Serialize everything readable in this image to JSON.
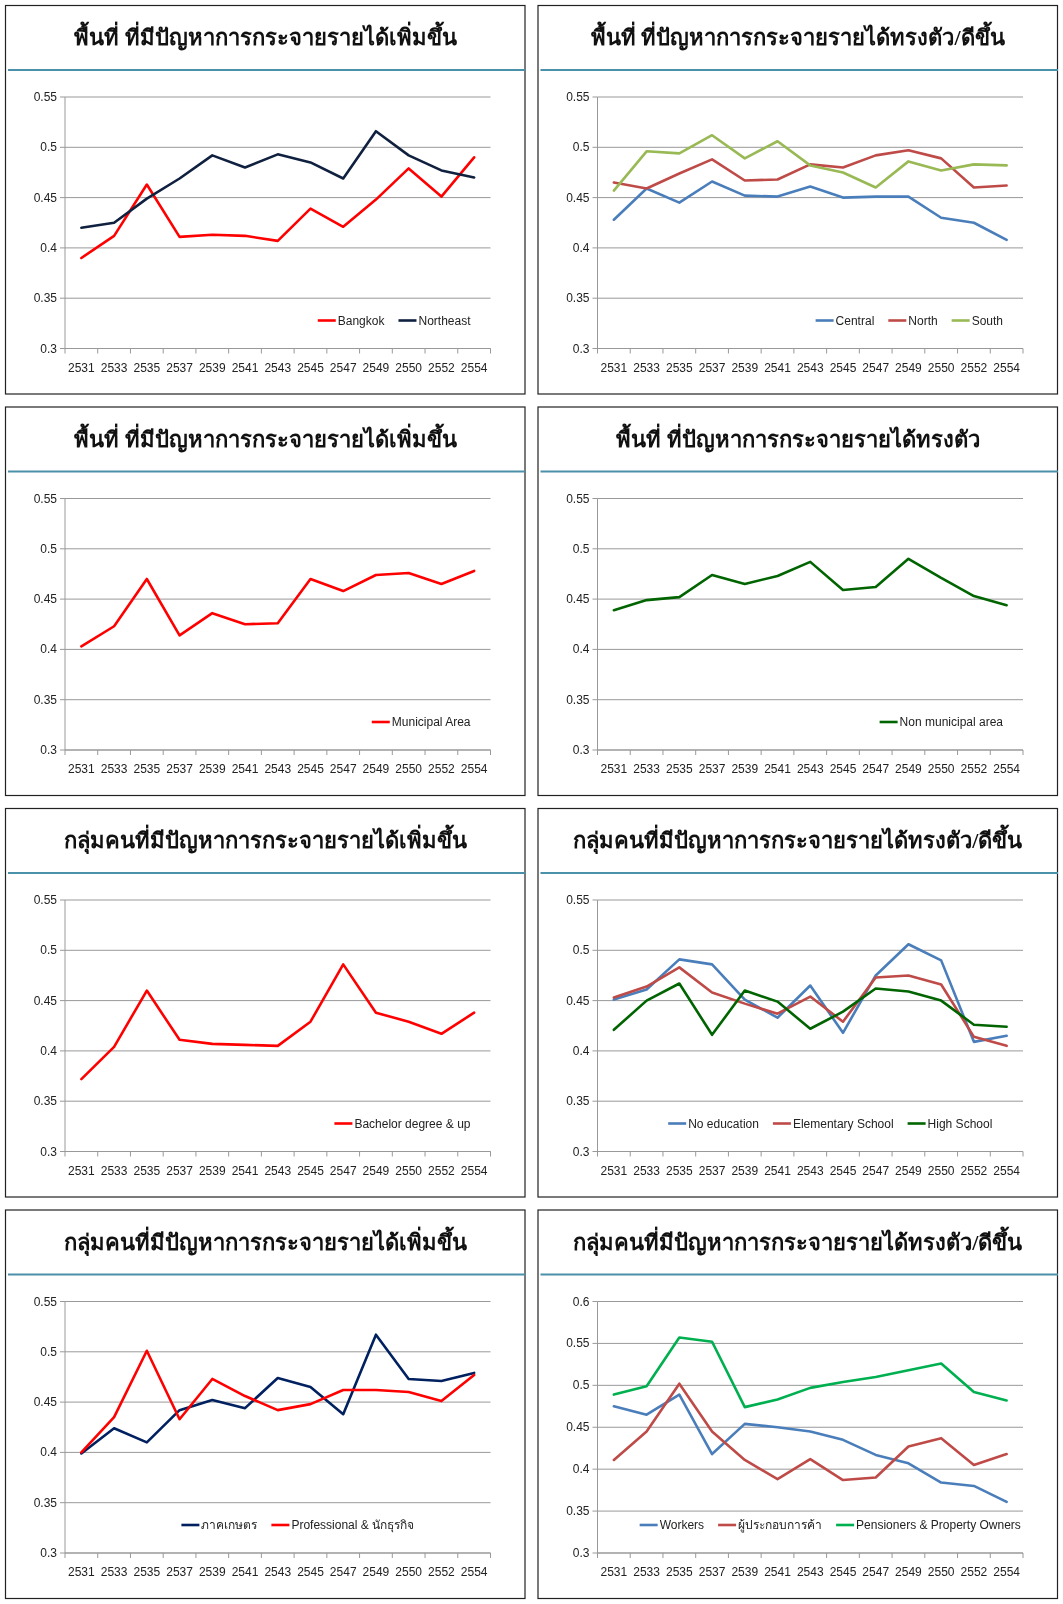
{
  "chart_data": [
    {
      "type": "line",
      "title": "พื้นที่ ที่มีปัญหาการกระจายรายได้เพิ่มขึ้น",
      "categories": [
        "2531",
        "2533",
        "2535",
        "2537",
        "2539",
        "2541",
        "2543",
        "2545",
        "2547",
        "2549",
        "2550",
        "2552",
        "2554"
      ],
      "ylim": [
        0.3,
        0.55
      ],
      "yticks": [
        0.3,
        0.35,
        0.4,
        0.45,
        0.5,
        0.55
      ],
      "grid": "y",
      "legend": "bottom right",
      "line_style": "solid",
      "marker": "none",
      "series": [
        {
          "name": "Bangkok",
          "color": "#ff0000",
          "values": [
            0.39,
            0.412,
            0.463,
            0.411,
            0.413,
            0.412,
            0.407,
            0.439,
            0.421,
            0.448,
            0.479,
            0.451,
            0.49
          ]
        },
        {
          "name": "Northeast",
          "color": "#10203f",
          "values": [
            0.42,
            0.425,
            0.449,
            0.469,
            0.492,
            0.48,
            0.493,
            0.485,
            0.469,
            0.516,
            0.492,
            0.477,
            0.47
          ]
        }
      ]
    },
    {
      "type": "line",
      "title": "พื้นที่ ที่ปัญหาการกระจายรายได้ทรงตัว/ดีขึ้น",
      "categories": [
        "2531",
        "2533",
        "2535",
        "2537",
        "2539",
        "2541",
        "2543",
        "2545",
        "2547",
        "2549",
        "2550",
        "2552",
        "2554"
      ],
      "ylim": [
        0.3,
        0.55
      ],
      "yticks": [
        0.3,
        0.35,
        0.4,
        0.45,
        0.5,
        0.55
      ],
      "grid": "y",
      "legend": "bottom right",
      "line_style": "solid",
      "marker": "none",
      "series": [
        {
          "name": "Central",
          "color": "#4a7ebb",
          "values": [
            0.428,
            0.459,
            0.445,
            0.466,
            0.452,
            0.451,
            0.461,
            0.45,
            0.451,
            0.451,
            0.43,
            0.425,
            0.408
          ]
        },
        {
          "name": "North",
          "color": "#be4b48",
          "values": [
            0.465,
            0.459,
            0.474,
            0.488,
            0.467,
            0.468,
            0.483,
            0.48,
            0.492,
            0.497,
            0.489,
            0.46,
            0.462
          ]
        },
        {
          "name": "South",
          "color": "#98b954",
          "values": [
            0.457,
            0.496,
            0.494,
            0.512,
            0.489,
            0.506,
            0.482,
            0.475,
            0.46,
            0.486,
            0.477,
            0.483,
            0.482
          ]
        }
      ]
    },
    {
      "type": "line",
      "title": "พื้นที่ ที่มีปัญหาการกระจายรายได้เพิ่มขึ้น",
      "categories": [
        "2531",
        "2533",
        "2535",
        "2537",
        "2539",
        "2541",
        "2543",
        "2545",
        "2547",
        "2549",
        "2550",
        "2552",
        "2554"
      ],
      "ylim": [
        0.3,
        0.55
      ],
      "yticks": [
        0.3,
        0.35,
        0.4,
        0.45,
        0.5,
        0.55
      ],
      "grid": "y",
      "legend": "bottom right",
      "line_style": "solid",
      "marker": "none",
      "series": [
        {
          "name": "Municipal Area",
          "color": "#ff0000",
          "values": [
            0.403,
            0.423,
            0.47,
            0.414,
            0.436,
            0.425,
            0.426,
            0.47,
            0.458,
            0.474,
            0.476,
            0.465,
            0.478
          ]
        }
      ]
    },
    {
      "type": "line",
      "title": "พื้นที่ ที่ปัญหาการกระจายรายได้ทรงตัว",
      "categories": [
        "2531",
        "2533",
        "2535",
        "2537",
        "2539",
        "2541",
        "2543",
        "2545",
        "2547",
        "2549",
        "2550",
        "2552",
        "2554"
      ],
      "ylim": [
        0.3,
        0.55
      ],
      "yticks": [
        0.3,
        0.35,
        0.4,
        0.45,
        0.5,
        0.55
      ],
      "grid": "y",
      "legend": "bottom right",
      "line_style": "solid",
      "marker": "none",
      "series": [
        {
          "name": "Non municipal area",
          "color": "#006400",
          "values": [
            0.439,
            0.449,
            0.452,
            0.474,
            0.465,
            0.473,
            0.487,
            0.459,
            0.462,
            0.49,
            0.471,
            0.453,
            0.444
          ]
        }
      ]
    },
    {
      "type": "line",
      "title": "กลุ่มคนที่มีปัญหาการกระจายรายได้เพิ่มขึ้น",
      "categories": [
        "2531",
        "2533",
        "2535",
        "2537",
        "2539",
        "2541",
        "2543",
        "2545",
        "2547",
        "2549",
        "2550",
        "2552",
        "2554"
      ],
      "ylim": [
        0.3,
        0.55
      ],
      "yticks": [
        0.3,
        0.35,
        0.4,
        0.45,
        0.5,
        0.55
      ],
      "grid": "y",
      "legend": "bottom right",
      "line_style": "solid",
      "marker": "none",
      "series": [
        {
          "name": "Bachelor degree & up",
          "color": "#ff0000",
          "values": [
            0.372,
            0.404,
            0.46,
            0.411,
            0.407,
            0.406,
            0.405,
            0.429,
            0.486,
            0.438,
            0.429,
            0.417,
            0.438
          ]
        }
      ]
    },
    {
      "type": "line",
      "title": "กลุ่มคนที่มีปัญหาการกระจายรายได้ทรงตัว/ดีขึ้น",
      "categories": [
        "2531",
        "2533",
        "2535",
        "2537",
        "2539",
        "2541",
        "2543",
        "2545",
        "2547",
        "2549",
        "2550",
        "2552",
        "2554"
      ],
      "ylim": [
        0.3,
        0.55
      ],
      "yticks": [
        0.3,
        0.35,
        0.4,
        0.45,
        0.5,
        0.55
      ],
      "grid": "y",
      "legend": "bottom",
      "line_style": "solid",
      "marker": "none",
      "series": [
        {
          "name": "No education",
          "color": "#4a7ebb",
          "values": [
            0.451,
            0.461,
            0.491,
            0.486,
            0.451,
            0.433,
            0.465,
            0.418,
            0.475,
            0.506,
            0.49,
            0.409,
            0.415
          ]
        },
        {
          "name": "Elementary School",
          "color": "#be4b48",
          "values": [
            0.453,
            0.464,
            0.483,
            0.458,
            0.447,
            0.437,
            0.454,
            0.429,
            0.473,
            0.475,
            0.466,
            0.414,
            0.405
          ]
        },
        {
          "name": "High School",
          "color": "#006400",
          "values": [
            0.421,
            0.45,
            0.467,
            0.416,
            0.46,
            0.449,
            0.422,
            0.439,
            0.462,
            0.459,
            0.45,
            0.426,
            0.424
          ]
        }
      ]
    },
    {
      "type": "line",
      "title": "กลุ่มคนที่มีปัญหาการกระจายรายได้เพิ่มขึ้น",
      "categories": [
        "2531",
        "2533",
        "2535",
        "2537",
        "2539",
        "2541",
        "2543",
        "2545",
        "2547",
        "2549",
        "2550",
        "2552",
        "2554"
      ],
      "ylim": [
        0.3,
        0.55
      ],
      "yticks": [
        0.3,
        0.35,
        0.4,
        0.45,
        0.5,
        0.55
      ],
      "grid": "y",
      "legend": "bottom",
      "line_style": "solid",
      "marker": "none",
      "series": [
        {
          "name": "ภาคเกษตร",
          "color": "#002060",
          "values": [
            0.399,
            0.424,
            0.41,
            0.442,
            0.452,
            0.444,
            0.474,
            0.465,
            0.438,
            0.517,
            0.473,
            0.471,
            0.479
          ]
        },
        {
          "name": "Professional & นักธุรกิจ",
          "color": "#ff0000",
          "values": [
            0.4,
            0.435,
            0.501,
            0.433,
            0.473,
            0.456,
            0.442,
            0.448,
            0.462,
            0.462,
            0.46,
            0.451,
            0.477
          ]
        }
      ]
    },
    {
      "type": "line",
      "title": "กลุ่มคนที่มีปัญหาการกระจายรายได้ทรงตัว/ดีขึ้น",
      "categories": [
        "2531",
        "2533",
        "2535",
        "2537",
        "2539",
        "2541",
        "2543",
        "2545",
        "2547",
        "2549",
        "2550",
        "2552",
        "2554"
      ],
      "ylim": [
        0.3,
        0.6
      ],
      "yticks": [
        0.3,
        0.35,
        0.4,
        0.45,
        0.5,
        0.55,
        0.6
      ],
      "grid": "y",
      "legend": "bottom",
      "line_style": "solid",
      "marker": "none",
      "series": [
        {
          "name": "Workers",
          "color": "#4a7ebb",
          "values": [
            0.475,
            0.465,
            0.489,
            0.418,
            0.454,
            0.45,
            0.445,
            0.435,
            0.417,
            0.407,
            0.384,
            0.38,
            0.361
          ]
        },
        {
          "name": "ผู้ประกอบการค้า",
          "color": "#be4b48",
          "values": [
            0.411,
            0.445,
            0.502,
            0.445,
            0.411,
            0.388,
            0.412,
            0.387,
            0.39,
            0.427,
            0.437,
            0.405,
            0.418
          ]
        },
        {
          "name": "Pensioners & Property Owners",
          "color": "#00b050",
          "values": [
            0.489,
            0.499,
            0.557,
            0.552,
            0.474,
            0.483,
            0.497,
            0.504,
            0.51,
            0.518,
            0.526,
            0.492,
            0.482
          ]
        }
      ]
    }
  ]
}
